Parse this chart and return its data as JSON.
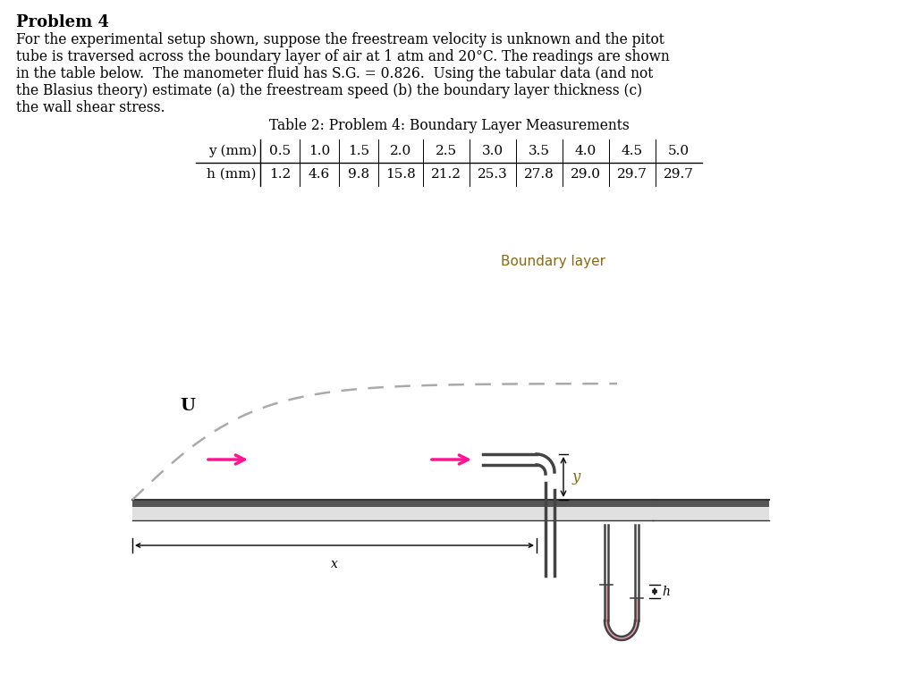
{
  "title": "Problem 4",
  "paragraph_lines": [
    "For the experimental setup shown, suppose the freestream velocity is unknown and the pitot",
    "tube is traversed across the boundary layer of air at 1 atm and 20°C. The readings are shown",
    "in the table below.  The manometer fluid has S.G. = 0.826.  Using the tabular data (and not",
    "the Blasius theory) estimate (a) the freestream speed (b) the boundary layer thickness (c)",
    "the wall shear stress."
  ],
  "table_caption": "Table 2: Problem 4: Boundary Layer Measurements",
  "row1_label": "y (mm)",
  "row2_label": "h (mm)",
  "y_values": [
    "0.5",
    "1.0",
    "1.5",
    "2.0",
    "2.5",
    "3.0",
    "3.5",
    "4.0",
    "4.5",
    "5.0"
  ],
  "h_values": [
    "1.2",
    "4.6",
    "9.8",
    "15.8",
    "21.2",
    "25.3",
    "27.8",
    "29.0",
    "29.7",
    "29.7"
  ],
  "boundary_layer_label": "Boundary layer",
  "U_label": "U",
  "y_label": "y",
  "x_label": "x",
  "h_label": "h",
  "arrow_color": "#FF1493",
  "bg_color": "#ffffff",
  "text_color": "#000000",
  "wall_light_color": "#d0d0d0",
  "wall_dark_color": "#555555",
  "fluid_color": "#F0A0B0",
  "dashed_color": "#aaaaaa",
  "tube_color": "#444444",
  "bl_label_color": "#8B6914",
  "y_label_color": "#8B6914"
}
